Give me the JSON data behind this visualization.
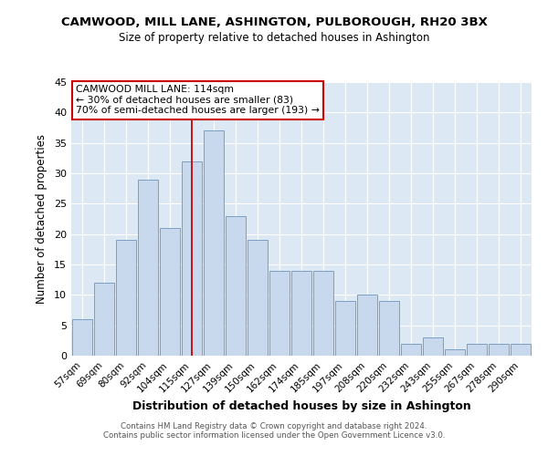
{
  "title": "CAMWOOD, MILL LANE, ASHINGTON, PULBOROUGH, RH20 3BX",
  "subtitle": "Size of property relative to detached houses in Ashington",
  "xlabel": "Distribution of detached houses by size in Ashington",
  "ylabel": "Number of detached properties",
  "bar_labels": [
    "57sqm",
    "69sqm",
    "80sqm",
    "92sqm",
    "104sqm",
    "115sqm",
    "127sqm",
    "139sqm",
    "150sqm",
    "162sqm",
    "174sqm",
    "185sqm",
    "197sqm",
    "208sqm",
    "220sqm",
    "232sqm",
    "243sqm",
    "255sqm",
    "267sqm",
    "278sqm",
    "290sqm"
  ],
  "bar_values": [
    6,
    12,
    19,
    29,
    21,
    32,
    37,
    23,
    19,
    14,
    14,
    14,
    9,
    10,
    9,
    2,
    3,
    1,
    2,
    2,
    2
  ],
  "bar_color": "#c9d9ed",
  "bar_edge_color": "#7aa0c4",
  "marker_index": 5,
  "marker_line_color": "#cc0000",
  "annotation_line1": "CAMWOOD MILL LANE: 114sqm",
  "annotation_line2": "← 30% of detached houses are smaller (83)",
  "annotation_line3": "70% of semi-detached houses are larger (193) →",
  "annotation_box_edge_color": "#cc0000",
  "ylim": [
    0,
    45
  ],
  "yticks": [
    0,
    5,
    10,
    15,
    20,
    25,
    30,
    35,
    40,
    45
  ],
  "plot_bg_color": "#dde8f5",
  "fig_bg_color": "#ffffff",
  "grid_color": "#ffffff",
  "footer_line1": "Contains HM Land Registry data © Crown copyright and database right 2024.",
  "footer_line2": "Contains public sector information licensed under the Open Government Licence v3.0."
}
